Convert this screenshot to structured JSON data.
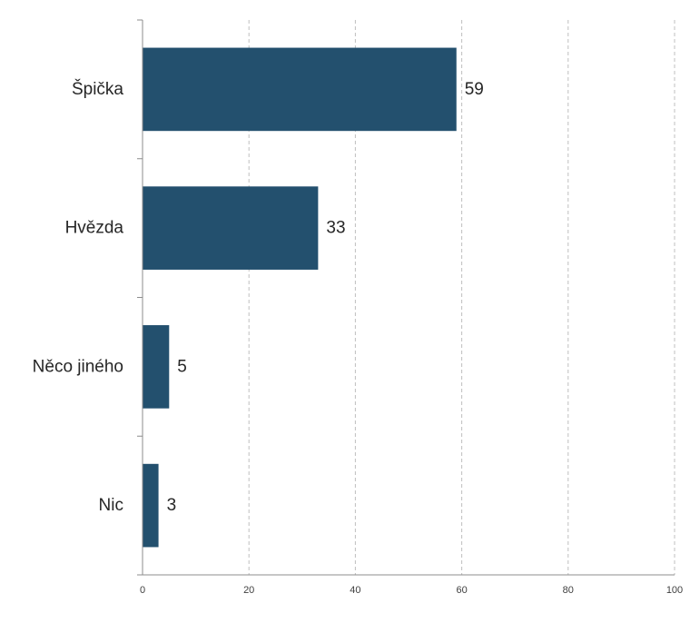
{
  "chart_data": {
    "type": "bar",
    "orientation": "horizontal",
    "categories": [
      "Špička",
      "Hvězda",
      "Něco jiného",
      "Nic"
    ],
    "values": [
      59,
      33,
      5,
      3
    ],
    "value_labels": [
      "59",
      "33",
      "5",
      "3"
    ],
    "xlim": [
      0,
      100
    ],
    "x_ticks": [
      "0",
      "20",
      "40",
      "60",
      "80",
      "100"
    ],
    "x_tick_values": [
      0,
      20,
      40,
      60,
      80,
      100
    ],
    "title": "",
    "xlabel": "",
    "ylabel": "",
    "grid": true,
    "legend": "none",
    "bar_color": "#23506e",
    "grid_color": "#bfbfbf",
    "axis_color": "#8c8c8c",
    "text_color": "#262626"
  }
}
